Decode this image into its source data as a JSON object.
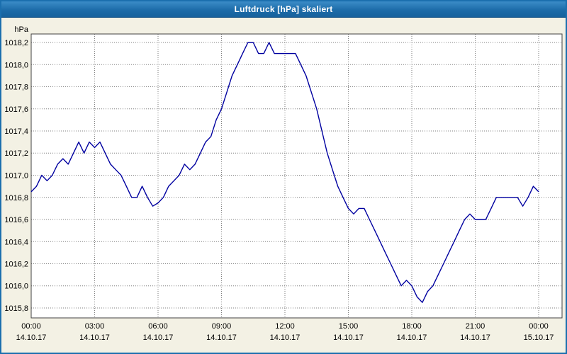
{
  "window": {
    "title": "Luftdruck [hPa] skaliert"
  },
  "chart_data": {
    "type": "line",
    "title": "Luftdruck [hPa] skaliert",
    "ylabel": "hPa",
    "axis_unit_label": "hPa",
    "grid": "dotted",
    "legend": "none",
    "line_color": "#0000a0",
    "plot_bg": "#ffffff",
    "outer_bg": "#f3f1e4",
    "grid_color": "#7f7f7f",
    "ylim": [
      1015.8,
      1018.2
    ],
    "xlim": [
      0,
      24
    ],
    "yticks": [
      1015.8,
      1016.0,
      1016.2,
      1016.4,
      1016.6,
      1016.8,
      1017.0,
      1017.2,
      1017.4,
      1017.6,
      1017.8,
      1018.0,
      1018.2
    ],
    "ytick_labels": [
      "1015,8",
      "1016,0",
      "1016,2",
      "1016,4",
      "1016,6",
      "1016,8",
      "1017,0",
      "1017,2",
      "1017,4",
      "1017,6",
      "1017,8",
      "1018,0",
      "1018,2"
    ],
    "xticks": [
      0,
      3,
      6,
      9,
      12,
      15,
      18,
      21,
      24
    ],
    "xtick_time_labels": [
      "00:00",
      "03:00",
      "06:00",
      "09:00",
      "12:00",
      "15:00",
      "18:00",
      "21:00",
      "00:00"
    ],
    "xtick_date_labels": [
      "14.10.17",
      "14.10.17",
      "14.10.17",
      "14.10.17",
      "14.10.17",
      "14.10.17",
      "14.10.17",
      "14.10.17",
      "15.10.17"
    ],
    "series": [
      {
        "name": "Luftdruck",
        "x_start": 0,
        "x_step_hours": 0.25,
        "values": [
          1016.85,
          1016.9,
          1017.0,
          1016.95,
          1017.0,
          1017.1,
          1017.15,
          1017.1,
          1017.2,
          1017.3,
          1017.2,
          1017.3,
          1017.25,
          1017.3,
          1017.2,
          1017.1,
          1017.05,
          1017.0,
          1016.9,
          1016.8,
          1016.8,
          1016.9,
          1016.8,
          1016.72,
          1016.75,
          1016.8,
          1016.9,
          1016.95,
          1017.0,
          1017.1,
          1017.05,
          1017.1,
          1017.2,
          1017.3,
          1017.35,
          1017.5,
          1017.6,
          1017.75,
          1017.9,
          1018.0,
          1018.1,
          1018.2,
          1018.2,
          1018.1,
          1018.1,
          1018.2,
          1018.1,
          1018.1,
          1018.1,
          1018.1,
          1018.1,
          1018.0,
          1017.9,
          1017.75,
          1017.6,
          1017.4,
          1017.2,
          1017.05,
          1016.9,
          1016.8,
          1016.7,
          1016.65,
          1016.7,
          1016.7,
          1016.6,
          1016.5,
          1016.4,
          1016.3,
          1016.2,
          1016.1,
          1016.0,
          1016.05,
          1016.0,
          1015.9,
          1015.85,
          1015.95,
          1016.0,
          1016.1,
          1016.2,
          1016.3,
          1016.4,
          1016.5,
          1016.6,
          1016.65,
          1016.6,
          1016.6,
          1016.6,
          1016.7,
          1016.8,
          1016.8,
          1016.8,
          1016.8,
          1016.8,
          1016.72,
          1016.8,
          1016.9,
          1016.85
        ]
      }
    ]
  }
}
